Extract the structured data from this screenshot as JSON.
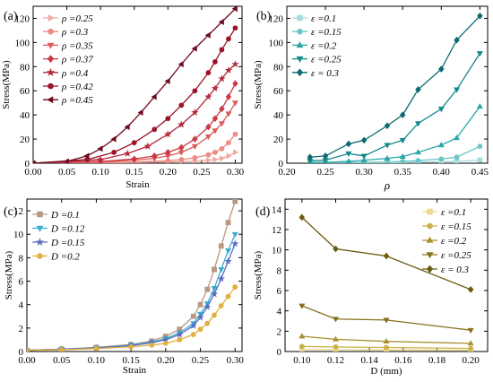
{
  "chart_data": [
    {
      "panel": "(a)",
      "type": "line",
      "xlabel": "Strain",
      "ylabel": "Stress(MPa)",
      "xlim": [
        0.0,
        0.31
      ],
      "ylim": [
        0,
        130
      ],
      "xticks": [
        "0.00",
        "0.05",
        "0.10",
        "0.15",
        "0.20",
        "0.25",
        "0.30"
      ],
      "yticks": [
        "0",
        "20",
        "40",
        "60",
        "80",
        "100",
        "120"
      ],
      "legend_position": "top-left",
      "series": [
        {
          "name": "ρ =0.25",
          "color": "#f0aaa0",
          "marker": "triangle-right",
          "x": [
            0.0,
            0.1,
            0.15,
            0.2,
            0.22,
            0.24,
            0.26,
            0.27,
            0.28,
            0.29,
            0.3
          ],
          "y": [
            0,
            0.3,
            0.6,
            1.0,
            1.3,
            1.8,
            2.5,
            3.0,
            4.0,
            6.0,
            9.0
          ]
        },
        {
          "name": "ρ =0.3",
          "color": "#eb8c82",
          "marker": "circle",
          "x": [
            0.0,
            0.1,
            0.15,
            0.2,
            0.22,
            0.24,
            0.26,
            0.27,
            0.28,
            0.29,
            0.3
          ],
          "y": [
            0,
            0.5,
            1.0,
            2.0,
            3.0,
            4.5,
            7.0,
            9.0,
            12.0,
            17.0,
            24.0
          ]
        },
        {
          "name": "ρ =0.35",
          "color": "#dc5a5a",
          "marker": "triangle-down",
          "x": [
            0.0,
            0.1,
            0.15,
            0.18,
            0.2,
            0.22,
            0.24,
            0.26,
            0.27,
            0.28,
            0.29,
            0.3
          ],
          "y": [
            0,
            1.0,
            2.5,
            4.0,
            6.0,
            9.0,
            14.0,
            22.0,
            27.0,
            33.0,
            41.0,
            50.0
          ]
        },
        {
          "name": "ρ =0.37",
          "color": "#c83c46",
          "marker": "diamond",
          "x": [
            0.0,
            0.1,
            0.15,
            0.18,
            0.2,
            0.22,
            0.24,
            0.26,
            0.27,
            0.28,
            0.29,
            0.3
          ],
          "y": [
            0,
            1.5,
            3.5,
            6.0,
            9.0,
            13.0,
            20.0,
            30.0,
            37.0,
            45.0,
            55.0,
            66.0
          ]
        },
        {
          "name": "ρ =0.4",
          "color": "#b4283c",
          "marker": "star",
          "x": [
            0.0,
            0.1,
            0.14,
            0.17,
            0.2,
            0.22,
            0.24,
            0.26,
            0.27,
            0.28,
            0.29,
            0.3
          ],
          "y": [
            0,
            3.0,
            8.0,
            14.0,
            24.0,
            32.0,
            42.0,
            55.0,
            62.0,
            70.0,
            77.0,
            82.0
          ]
        },
        {
          "name": "ρ =0.42",
          "color": "#9b1428",
          "marker": "circle",
          "x": [
            0.0,
            0.08,
            0.12,
            0.15,
            0.18,
            0.2,
            0.22,
            0.24,
            0.26,
            0.27,
            0.28,
            0.29,
            0.3
          ],
          "y": [
            0,
            3.0,
            9.0,
            17.0,
            28.0,
            37.0,
            48.0,
            60.0,
            75.0,
            84.0,
            94.0,
            103.0,
            112.0
          ]
        },
        {
          "name": "ρ =0.45",
          "color": "#6e0a1e",
          "marker": "triangle-left",
          "x": [
            0.0,
            0.05,
            0.08,
            0.1,
            0.12,
            0.14,
            0.16,
            0.18,
            0.2,
            0.22,
            0.24,
            0.26,
            0.28,
            0.3
          ],
          "y": [
            0,
            1.5,
            6.0,
            12.0,
            20.0,
            30.0,
            42.0,
            55.0,
            68.0,
            82.0,
            95.0,
            106.0,
            117.0,
            128.0
          ]
        }
      ]
    },
    {
      "panel": "(b)",
      "type": "line",
      "xlabel": "ρ",
      "ylabel": "Stress(MPa)",
      "xlim": [
        0.2,
        0.46
      ],
      "ylim": [
        0,
        130
      ],
      "xticks": [
        "0.20",
        "0.25",
        "0.30",
        "0.35",
        "0.40",
        "0.45"
      ],
      "yticks": [
        "0",
        "20",
        "40",
        "60",
        "80",
        "100",
        "120"
      ],
      "legend_position": "top-left",
      "x": [
        0.23,
        0.25,
        0.28,
        0.3,
        0.33,
        0.35,
        0.37,
        0.4,
        0.42,
        0.45
      ],
      "series": [
        {
          "name": "ε =0.1",
          "color": "#a8dcdc",
          "marker": "square",
          "values": [
            0.1,
            0.1,
            0.2,
            0.3,
            0.4,
            0.6,
            0.8,
            1.2,
            1.6,
            2.5
          ]
        },
        {
          "name": "ε =0.15",
          "color": "#6cc6c6",
          "marker": "circle",
          "values": [
            0.2,
            0.3,
            0.5,
            0.7,
            1.0,
            1.5,
            2.2,
            3.5,
            5.0,
            14.0
          ]
        },
        {
          "name": "ε =0.2",
          "color": "#2aa6a6",
          "marker": "triangle-up",
          "values": [
            0.5,
            0.7,
            1.5,
            2.5,
            4.0,
            5.5,
            9.0,
            15.0,
            21.0,
            47.0
          ]
        },
        {
          "name": "ε =0.25",
          "color": "#13898b",
          "marker": "triangle-down",
          "values": [
            2.0,
            2.5,
            8.0,
            6.0,
            15.0,
            19.0,
            33.0,
            45.0,
            61.0,
            91.0
          ]
        },
        {
          "name": "ε = 0.3",
          "color": "#0a6a70",
          "marker": "diamond",
          "values": [
            5.0,
            6.0,
            16.0,
            19.0,
            31.0,
            40.0,
            61.0,
            78.0,
            102.0,
            122.0
          ]
        }
      ]
    },
    {
      "panel": "(c)",
      "type": "line",
      "xlabel": "Strain",
      "ylabel": "Stress(MPa)",
      "xlim": [
        0.0,
        0.31
      ],
      "ylim": [
        0,
        13
      ],
      "xticks": [
        "0.00",
        "0.05",
        "0.10",
        "0.15",
        "0.20",
        "0.25",
        "0.30"
      ],
      "yticks": [
        "0",
        "2",
        "4",
        "6",
        "8",
        "10",
        "12"
      ],
      "legend_position": "top-left",
      "series": [
        {
          "name": "D =0.1",
          "color": "#b89880",
          "marker": "square",
          "x": [
            0.0,
            0.05,
            0.1,
            0.15,
            0.18,
            0.2,
            0.22,
            0.24,
            0.25,
            0.26,
            0.27,
            0.28,
            0.29,
            0.3
          ],
          "y": [
            0.1,
            0.2,
            0.35,
            0.6,
            0.9,
            1.3,
            1.9,
            3.0,
            4.0,
            5.3,
            7.0,
            9.0,
            11.0,
            12.8
          ]
        },
        {
          "name": "D =0.12",
          "color": "#3aaed0",
          "marker": "triangle-down",
          "x": [
            0.0,
            0.05,
            0.1,
            0.15,
            0.18,
            0.2,
            0.22,
            0.24,
            0.25,
            0.26,
            0.27,
            0.28,
            0.29,
            0.3
          ],
          "y": [
            0.1,
            0.2,
            0.3,
            0.55,
            0.8,
            1.1,
            1.6,
            2.4,
            3.2,
            4.1,
            5.4,
            7.0,
            8.6,
            10.0
          ]
        },
        {
          "name": "D =0.15",
          "color": "#5a6cc0",
          "marker": "star",
          "x": [
            0.0,
            0.05,
            0.1,
            0.15,
            0.18,
            0.2,
            0.22,
            0.24,
            0.25,
            0.26,
            0.27,
            0.28,
            0.29,
            0.3
          ],
          "y": [
            0.1,
            0.2,
            0.3,
            0.5,
            0.75,
            1.0,
            1.45,
            2.2,
            2.9,
            3.8,
            4.9,
            6.2,
            7.7,
            9.2
          ]
        },
        {
          "name": "D =0.2",
          "color": "#e0b040",
          "marker": "circle",
          "x": [
            0.0,
            0.05,
            0.1,
            0.15,
            0.18,
            0.2,
            0.22,
            0.24,
            0.25,
            0.26,
            0.27,
            0.28,
            0.29,
            0.3
          ],
          "y": [
            0.1,
            0.15,
            0.25,
            0.4,
            0.55,
            0.7,
            1.0,
            1.45,
            1.9,
            2.4,
            3.1,
            3.9,
            4.7,
            5.5
          ]
        }
      ]
    },
    {
      "panel": "(d)",
      "type": "line",
      "xlabel": "D (mm)",
      "ylabel": "Stress(MPa)",
      "xlim": [
        0.09,
        0.21
      ],
      "ylim": [
        0,
        15
      ],
      "xticks": [
        "0.10",
        "0.12",
        "0.14",
        "0.16",
        "0.18",
        "0.20"
      ],
      "yticks": [
        "0",
        "2",
        "4",
        "6",
        "8",
        "10",
        "12",
        "14"
      ],
      "legend_position": "top-right",
      "x": [
        0.1,
        0.12,
        0.15,
        0.2
      ],
      "series": [
        {
          "name": "ε =0.1",
          "color": "#e8d890",
          "marker": "square",
          "values": [
            0.2,
            0.18,
            0.15,
            0.12
          ]
        },
        {
          "name": "ε =0.15",
          "color": "#ccb04a",
          "marker": "circle",
          "values": [
            0.5,
            0.45,
            0.4,
            0.3
          ]
        },
        {
          "name": "ε =0.2",
          "color": "#a89030",
          "marker": "triangle-up",
          "values": [
            1.5,
            1.2,
            1.0,
            0.8
          ]
        },
        {
          "name": "ε =0.25",
          "color": "#86701c",
          "marker": "triangle-down",
          "values": [
            4.5,
            3.2,
            3.1,
            2.1
          ]
        },
        {
          "name": "ε = 0.3",
          "color": "#6a5a10",
          "marker": "diamond",
          "values": [
            13.2,
            10.1,
            9.4,
            6.1
          ]
        }
      ]
    }
  ]
}
